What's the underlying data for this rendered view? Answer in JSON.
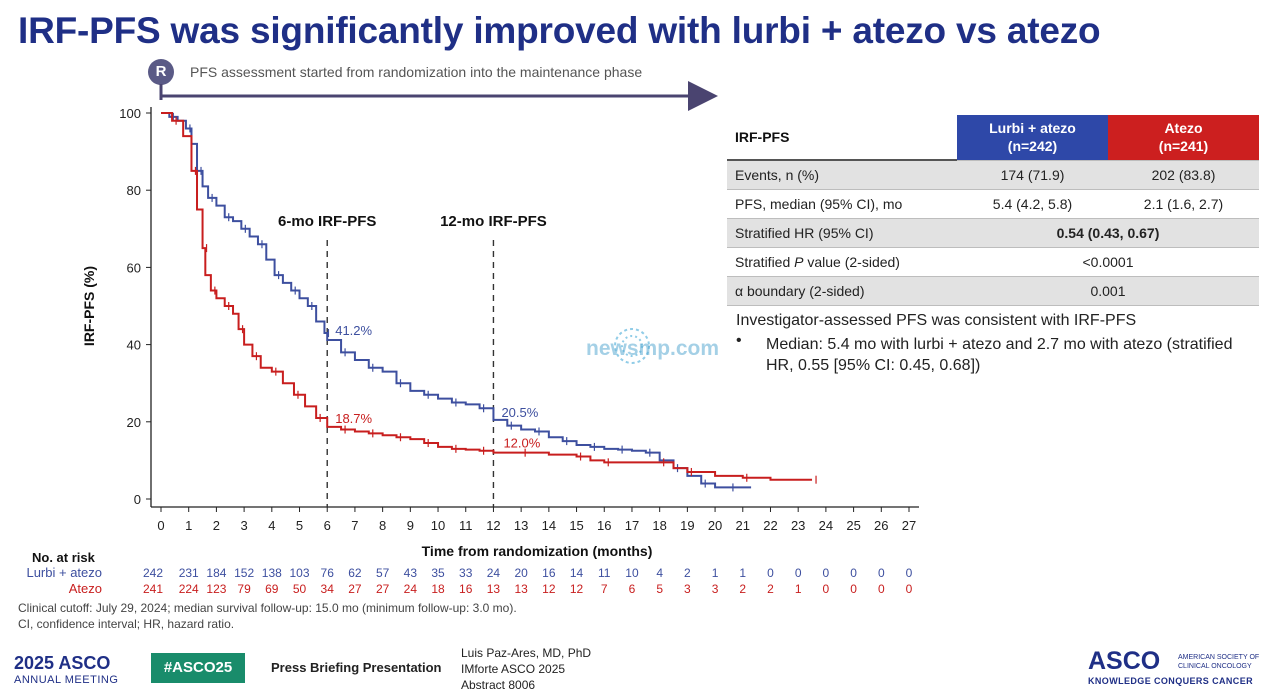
{
  "slide": {
    "title": "IRF-PFS was significantly improved with lurbi + atezo vs atezo",
    "r_badge": "R",
    "assessment_note": "PFS assessment started from randomization into the maintenance phase"
  },
  "colors": {
    "title": "#1f2f86",
    "lurbi_atezo": "#3d4f9f",
    "atezo": "#c81e1e",
    "badge": "#5a5a86",
    "hashtag_bg": "#198c6b"
  },
  "chart_data": {
    "type": "line",
    "subtype": "kaplan-meier",
    "title": "",
    "xlabel": "Time from randomization (months)",
    "ylabel": "IRF-PFS (%)",
    "xlim": [
      0,
      27
    ],
    "ylim": [
      0,
      100
    ],
    "x_ticks": [
      0,
      1,
      2,
      3,
      4,
      5,
      6,
      7,
      8,
      9,
      10,
      11,
      12,
      13,
      14,
      15,
      16,
      17,
      18,
      19,
      20,
      21,
      22,
      23,
      24,
      25,
      26,
      27
    ],
    "y_ticks": [
      0,
      20,
      40,
      60,
      80,
      100
    ],
    "grid": false,
    "series": [
      {
        "name": "Lurbi + atezo",
        "color": "#3d4f9f",
        "x": [
          0,
          0.3,
          0.6,
          0.9,
          1.1,
          1.3,
          1.5,
          1.7,
          2.0,
          2.3,
          2.6,
          2.9,
          3.2,
          3.5,
          3.8,
          4.1,
          4.4,
          4.7,
          5.0,
          5.3,
          5.6,
          5.9,
          6.0,
          6.5,
          7.0,
          7.5,
          8.0,
          8.5,
          9.0,
          9.5,
          10.0,
          10.5,
          11.0,
          11.5,
          12.0,
          12.5,
          13.0,
          13.5,
          14.0,
          14.5,
          15.0,
          15.5,
          16.0,
          16.5,
          17.0,
          17.5,
          18.0,
          18.5,
          19.0,
          19.5,
          20.0,
          20.5,
          21.3
        ],
        "y": [
          100,
          99,
          98,
          96,
          92,
          85,
          81,
          78,
          76,
          73,
          72,
          70,
          68,
          66,
          62,
          58,
          56,
          54,
          52,
          50,
          46,
          43,
          41.2,
          38,
          36,
          34,
          33,
          30,
          28,
          27,
          26,
          25,
          24.5,
          23.5,
          20.5,
          19,
          18,
          17.5,
          16,
          15,
          14,
          13.5,
          13,
          12.8,
          12.5,
          12,
          10,
          8,
          6,
          4,
          3,
          3,
          3
        ]
      },
      {
        "name": "Atezo",
        "color": "#c81e1e",
        "x": [
          0,
          0.4,
          0.8,
          1.1,
          1.3,
          1.5,
          1.6,
          1.8,
          2.0,
          2.3,
          2.6,
          2.8,
          3.0,
          3.3,
          3.6,
          4.0,
          4.4,
          4.8,
          5.2,
          5.6,
          6.0,
          6.5,
          7.0,
          7.5,
          8.0,
          8.5,
          9.0,
          9.5,
          10.0,
          10.5,
          11.0,
          11.5,
          12.0,
          13.0,
          14.0,
          15.0,
          15.5,
          16.0,
          17.0,
          18.0,
          18.5,
          19.0,
          20.0,
          21.0,
          22.0,
          23.5
        ],
        "y": [
          100,
          98,
          94,
          85,
          75,
          65,
          58,
          54,
          52,
          50,
          48,
          44,
          40,
          37,
          34,
          33,
          30,
          27,
          24,
          21,
          18.7,
          18,
          17.5,
          17,
          16.5,
          16,
          15.5,
          14.5,
          13.5,
          13,
          12.8,
          12.5,
          12,
          12,
          11.5,
          11,
          10,
          9.5,
          9.5,
          9.5,
          8,
          7,
          6,
          5.5,
          5,
          5
        ]
      }
    ],
    "reference_lines": [
      {
        "x": 6,
        "label": "6-mo IRF-PFS"
      },
      {
        "x": 12,
        "label": "12-mo IRF-PFS"
      }
    ],
    "annotations": [
      {
        "x": 6,
        "y": 41.2,
        "text": "41.2%",
        "series": "Lurbi + atezo"
      },
      {
        "x": 6,
        "y": 18.7,
        "text": "18.7%",
        "series": "Atezo"
      },
      {
        "x": 12,
        "y": 20.5,
        "text": "20.5%",
        "series": "Lurbi + atezo"
      },
      {
        "x": 12,
        "y": 12.0,
        "text": "12.0%",
        "series": "Atezo"
      }
    ],
    "risk_table": {
      "header": "No. at risk",
      "rows": [
        {
          "label": "Lurbi + atezo",
          "values": [
            242,
            231,
            184,
            152,
            138,
            103,
            76,
            62,
            57,
            43,
            35,
            33,
            24,
            20,
            16,
            14,
            11,
            10,
            4,
            2,
            1,
            1,
            0,
            0,
            0,
            0,
            0,
            0
          ]
        },
        {
          "label": "Atezo",
          "values": [
            241,
            224,
            123,
            79,
            69,
            50,
            34,
            27,
            27,
            24,
            18,
            16,
            13,
            13,
            12,
            12,
            7,
            6,
            5,
            3,
            3,
            2,
            2,
            1,
            0,
            0,
            0,
            0
          ]
        }
      ]
    }
  },
  "results_table": {
    "header": {
      "label": "IRF-PFS",
      "col1": "Lurbi + atezo\n(n=242)",
      "col2": "Atezo\n(n=241)"
    },
    "rows": [
      {
        "label": "Events, n (%)",
        "col1": "174 (71.9)",
        "col2": "202 (83.8)",
        "merged": null
      },
      {
        "label": "PFS, median (95% CI), mo",
        "col1": "5.4 (4.2, 5.8)",
        "col2": "2.1 (1.6, 2.7)",
        "merged": null
      },
      {
        "label": "Stratified HR (95% CI)",
        "merged": "0.54 (0.43, 0.67)"
      },
      {
        "label_prefix": "Stratified ",
        "label_italic": "P",
        "label_suffix": " value (2-sided)",
        "merged": "<0.0001"
      },
      {
        "label": "α boundary (2-sided)",
        "merged": "0.001"
      }
    ]
  },
  "summary": {
    "line1": "Investigator-assessed PFS was consistent with IRF-PFS",
    "bullet": "•",
    "line2": "Median: 5.4 mo with lurbi + atezo and 2.7 mo with atezo (stratified HR, 0.55 [95% CI: 0.45, 0.68])"
  },
  "watermark": "newsmp.com",
  "footnotes": {
    "cutoff": "Clinical cutoff: July 29, 2024; median survival follow-up: 15.0 mo (minimum follow-up: 3.0 mo).",
    "abbrev": "CI, confidence interval; HR, hazard ratio."
  },
  "footer": {
    "meeting_year": "2025 ASCO",
    "meeting_name": "ANNUAL MEETING",
    "hashtag": "#ASCO25",
    "press": "Press Briefing Presentation",
    "presenter": "Luis Paz-Ares, MD, PhD",
    "study": "IMforte ASCO 2025",
    "abstract": "Abstract 8006",
    "asco_logo": "ASCO",
    "asco_society": "AMERICAN SOCIETY OF CLINICAL ONCOLOGY",
    "asco_tagline": "KNOWLEDGE CONQUERS CANCER"
  }
}
